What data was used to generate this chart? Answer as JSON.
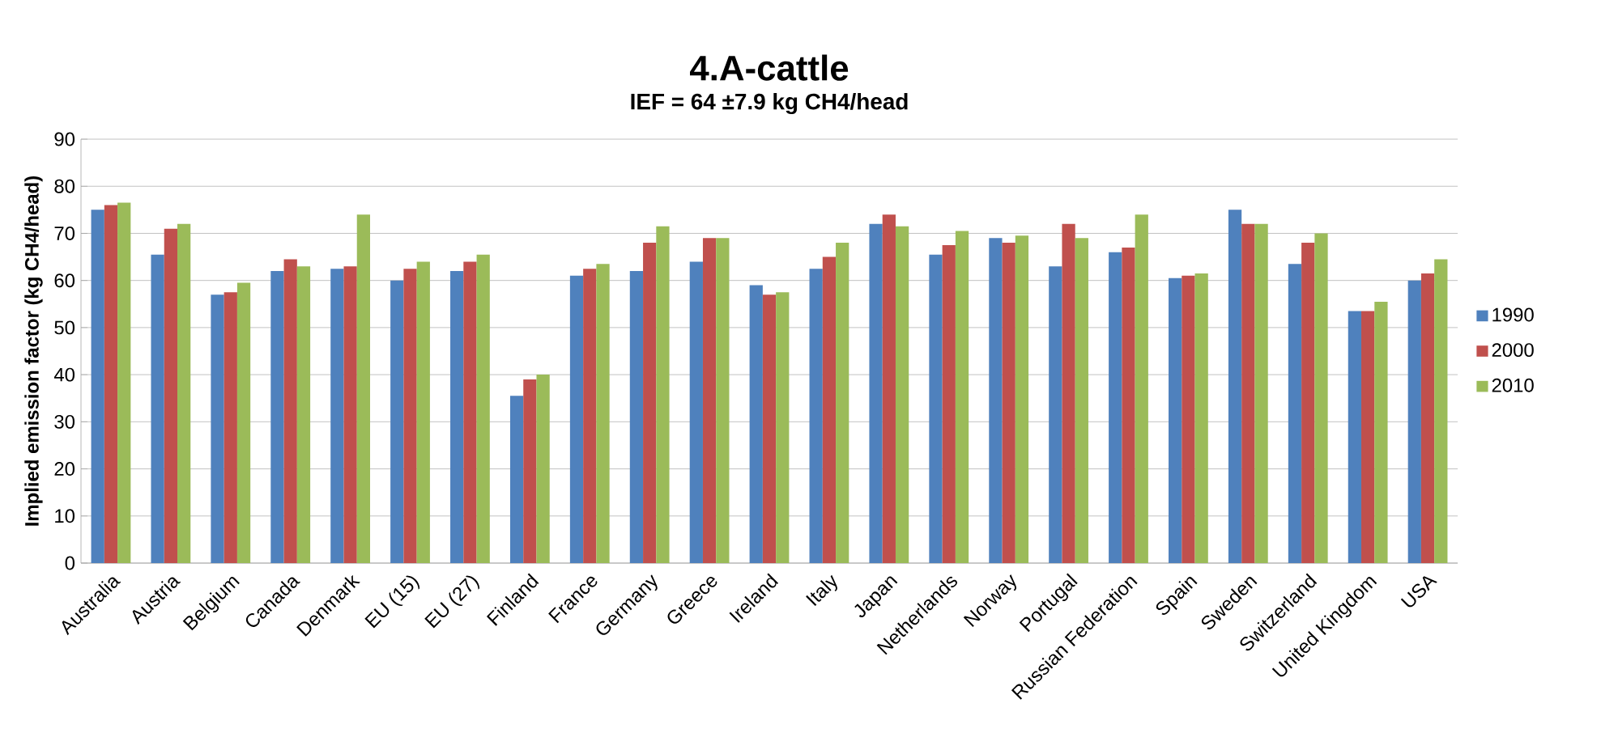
{
  "chart_data": {
    "type": "bar",
    "title": "4.A-cattle",
    "subtitle": "IEF = 64 ±7.9 kg CH4/head",
    "ylabel": "Implied emission factor (kg CH4/head)",
    "categories": [
      "Australia",
      "Austria",
      "Belgium",
      "Canada",
      "Denmark",
      "EU (15)",
      "EU (27)",
      "Finland",
      "France",
      "Germany",
      "Greece",
      "Ireland",
      "Italy",
      "Japan",
      "Netherlands",
      "Norway",
      "Portugal",
      "Russian Federation",
      "Spain",
      "Sweden",
      "Switzerland",
      "United Kingdom",
      "USA"
    ],
    "series": [
      {
        "name": "1990",
        "color": "#4f81bd",
        "values": [
          75,
          65.5,
          57,
          62,
          62.5,
          60,
          62,
          35.5,
          61,
          62,
          64,
          59,
          62.5,
          72,
          65.5,
          69,
          63,
          66,
          60.5,
          75,
          63.5,
          53.5,
          60
        ]
      },
      {
        "name": "2000",
        "color": "#c0504d",
        "values": [
          76,
          71,
          57.5,
          64.5,
          63,
          62.5,
          64,
          39,
          62.5,
          68,
          69,
          57,
          65,
          74,
          67.5,
          68,
          72,
          67,
          61,
          72,
          68,
          53.5,
          61.5
        ]
      },
      {
        "name": "2010",
        "color": "#9bbb59",
        "values": [
          76.5,
          72,
          59.5,
          63,
          74,
          64,
          65.5,
          40,
          63.5,
          71.5,
          69,
          57.5,
          68,
          71.5,
          70.5,
          69.5,
          69,
          74,
          61.5,
          72,
          70,
          55.5,
          64.5
        ]
      }
    ],
    "ylim": [
      0,
      90
    ],
    "yticks": [
      0,
      10,
      20,
      30,
      40,
      50,
      60,
      70,
      80,
      90
    ],
    "grid": "y",
    "legend": "right"
  }
}
